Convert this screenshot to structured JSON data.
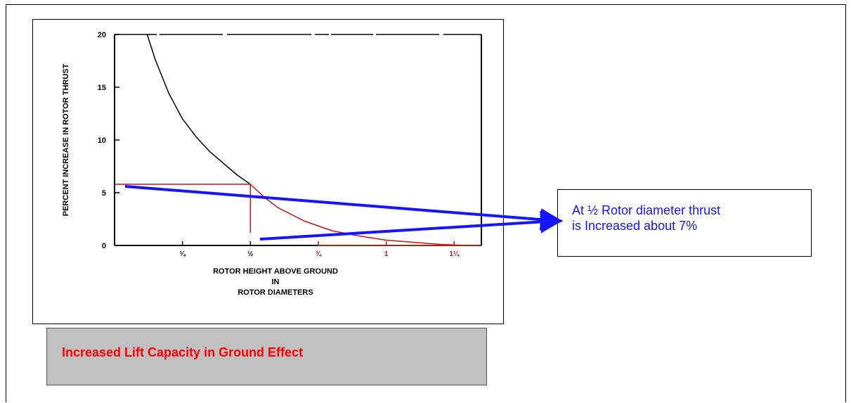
{
  "chart_data": {
    "type": "line",
    "title": "",
    "ylabel": "PERCENT INCREASE IN ROTOR THRUST",
    "xlabel_lines": [
      "ROTOR HEIGHT ABOVE GROUND",
      "IN",
      "ROTOR DIAMETERS"
    ],
    "xlim": [
      0,
      1.35
    ],
    "ylim": [
      0,
      20
    ],
    "x_ticks": [
      {
        "value": 0.25,
        "label": "¼"
      },
      {
        "value": 0.5,
        "label": "½"
      },
      {
        "value": 0.75,
        "label": "¾"
      },
      {
        "value": 1.0,
        "label": "1"
      },
      {
        "value": 1.25,
        "label": "1¼"
      }
    ],
    "y_ticks": [
      {
        "value": 0,
        "label": "0"
      },
      {
        "value": 5,
        "label": "5"
      },
      {
        "value": 10,
        "label": "10"
      },
      {
        "value": 15,
        "label": "15"
      },
      {
        "value": 20,
        "label": "20"
      }
    ],
    "series": [
      {
        "x": [
          0.12,
          0.15,
          0.2,
          0.25,
          0.3,
          0.35,
          0.4,
          0.45,
          0.5,
          0.55,
          0.6,
          0.7,
          0.8,
          0.9,
          1.0,
          1.1,
          1.2,
          1.3
        ],
        "y": [
          20,
          17.6,
          14.4,
          12.0,
          10.3,
          8.9,
          7.8,
          6.7,
          5.8,
          4.6,
          3.6,
          2.3,
          1.4,
          0.9,
          0.5,
          0.3,
          0.1,
          0
        ]
      }
    ],
    "highlight": {
      "x": 0.5,
      "y": 5.8
    },
    "grid": false,
    "legend": "none",
    "colors": {
      "curve_upper": "#000000",
      "curve_lower": "#c81414",
      "guides": "#c81414",
      "axes": "#000000",
      "arrows": "#1414ff"
    }
  },
  "callout": {
    "line1": "At ½ Rotor diameter thrust",
    "line2": "is Increased about 7%"
  },
  "caption": "Increased Lift Capacity in Ground Effect"
}
